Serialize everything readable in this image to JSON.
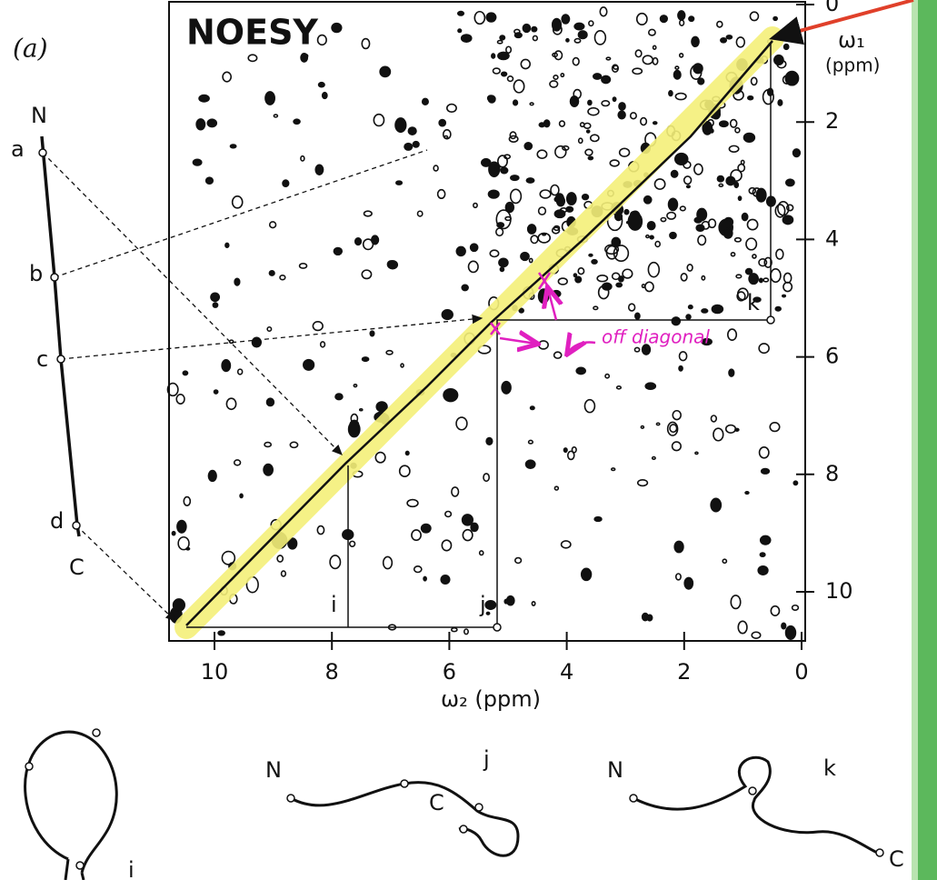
{
  "panel_label": "(a)",
  "title": "NOESY",
  "y_axis": {
    "label_symbol": "ω₁",
    "label_unit": "(ppm)",
    "ticks": [
      0,
      2,
      4,
      6,
      8,
      10
    ]
  },
  "x_axis": {
    "label": "ω₂ (ppm)",
    "ticks": [
      10,
      8,
      6,
      4,
      2,
      0
    ]
  },
  "chain": {
    "start": "N",
    "points": [
      "a",
      "b",
      "c",
      "d"
    ],
    "end": "C"
  },
  "cross_peaks": [
    "i",
    "j",
    "k"
  ],
  "annotation": "off diagonal",
  "bottom_diagrams": [
    {
      "label": "i"
    },
    {
      "start": "N",
      "label": "j",
      "end": "C"
    },
    {
      "start": "N",
      "label": "k",
      "end": "C"
    }
  ]
}
